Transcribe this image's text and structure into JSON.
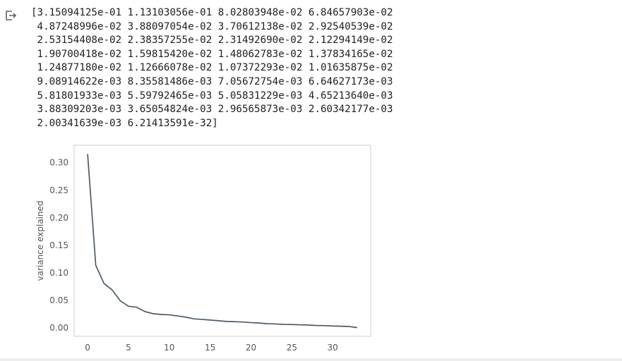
{
  "output": {
    "icon": "output-arrow-icon",
    "lines": [
      "[3.15094125e-01 1.13103056e-01 8.02803948e-02 6.84657903e-02",
      " 4.87248996e-02 3.88097054e-02 3.70612138e-02 2.92540539e-02",
      " 2.53154408e-02 2.38357255e-02 2.31492690e-02 2.12294149e-02",
      " 1.90700418e-02 1.59815420e-02 1.48062783e-02 1.37834165e-02",
      " 1.24877180e-02 1.12666078e-02 1.07372293e-02 1.01635875e-02",
      " 9.08914622e-03 8.35581486e-03 7.05672754e-03 6.64627173e-03",
      " 5.81801933e-03 5.59792465e-03 5.05831229e-03 4.65213640e-03",
      " 3.88309203e-03 3.65054824e-03 2.96565873e-03 2.60342177e-03",
      " 2.00341639e-03 6.21413591e-32]"
    ]
  },
  "chart_data": {
    "type": "line",
    "title": "",
    "xlabel": "",
    "ylabel": "variance explained",
    "xlim": [
      -1.65,
      34.65
    ],
    "ylim": [
      -0.0158,
      0.331
    ],
    "xticks": [
      0,
      5,
      10,
      15,
      20,
      25,
      30
    ],
    "xtick_labels": [
      "0",
      "5",
      "10",
      "15",
      "20",
      "25",
      "30"
    ],
    "yticks": [
      0.0,
      0.05,
      0.1,
      0.15,
      0.2,
      0.25,
      0.3
    ],
    "ytick_labels": [
      "0.00",
      "0.05",
      "0.10",
      "0.15",
      "0.20",
      "0.25",
      "0.30"
    ],
    "grid": false,
    "line_color": "#4c5a66",
    "x": [
      0,
      1,
      2,
      3,
      4,
      5,
      6,
      7,
      8,
      9,
      10,
      11,
      12,
      13,
      14,
      15,
      16,
      17,
      18,
      19,
      20,
      21,
      22,
      23,
      24,
      25,
      26,
      27,
      28,
      29,
      30,
      31,
      32,
      33
    ],
    "y": [
      0.315094125,
      0.113103056,
      0.0802803948,
      0.0684657903,
      0.0487248996,
      0.0388097054,
      0.0370612138,
      0.0292540539,
      0.0253154408,
      0.0238357255,
      0.023149269,
      0.0212294149,
      0.0190700418,
      0.015981542,
      0.0148062783,
      0.0137834165,
      0.012487718,
      0.0112666078,
      0.0107372293,
      0.0101635875,
      0.00908914622,
      0.00835581486,
      0.00705672754,
      0.00664627173,
      0.00581801933,
      0.00559792465,
      0.00505831229,
      0.0046521364,
      0.00388309203,
      0.00365054824,
      0.00296565873,
      0.00260342177,
      0.00200341639,
      6.21413591e-32
    ]
  }
}
